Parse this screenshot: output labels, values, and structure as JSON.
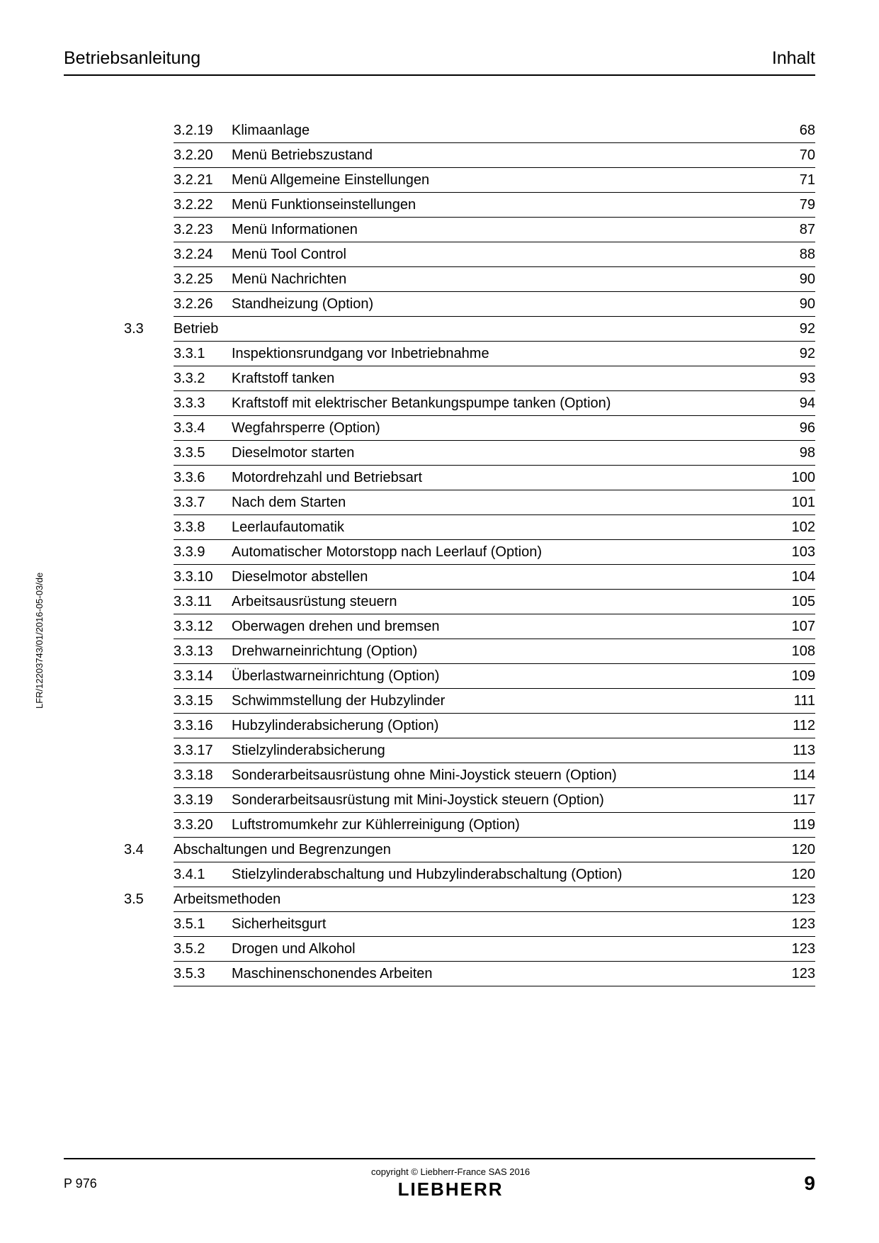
{
  "header": {
    "left": "Betriebsanleitung",
    "right": "Inhalt"
  },
  "side_text": "LFR/12203743/01/2016-05-03/de",
  "footer": {
    "left": "P 976",
    "copyright": "copyright © Liebherr-France SAS 2016",
    "logo": "LIEBHERR",
    "page": "9"
  },
  "toc": [
    {
      "section": "",
      "sub": "3.2.19",
      "title": "Klimaanlage",
      "page": "68"
    },
    {
      "section": "",
      "sub": "3.2.20",
      "title": "Menü Betriebszustand",
      "page": "70"
    },
    {
      "section": "",
      "sub": "3.2.21",
      "title": "Menü Allgemeine Einstellungen",
      "page": "71"
    },
    {
      "section": "",
      "sub": "3.2.22",
      "title": "Menü Funktionseinstellungen",
      "page": "79"
    },
    {
      "section": "",
      "sub": "3.2.23",
      "title": "Menü Informationen",
      "page": "87"
    },
    {
      "section": "",
      "sub": "3.2.24",
      "title": "Menü Tool Control",
      "page": "88"
    },
    {
      "section": "",
      "sub": "3.2.25",
      "title": "Menü Nachrichten",
      "page": "90"
    },
    {
      "section": "",
      "sub": "3.2.26",
      "title": "Standheizung (Option)",
      "page": "90"
    },
    {
      "section": "3.3",
      "sub": "",
      "title": "Betrieb",
      "page": "92"
    },
    {
      "section": "",
      "sub": "3.3.1",
      "title": "Inspektionsrundgang vor Inbetriebnahme",
      "page": "92"
    },
    {
      "section": "",
      "sub": "3.3.2",
      "title": "Kraftstoff tanken",
      "page": "93"
    },
    {
      "section": "",
      "sub": "3.3.3",
      "title": "Kraftstoff mit elektrischer Betankungspumpe tanken (Option)",
      "page": "94"
    },
    {
      "section": "",
      "sub": "3.3.4",
      "title": "Wegfahrsperre (Option)",
      "page": "96"
    },
    {
      "section": "",
      "sub": "3.3.5",
      "title": "Dieselmotor starten",
      "page": "98"
    },
    {
      "section": "",
      "sub": "3.3.6",
      "title": "Motordrehzahl und Betriebsart",
      "page": "100"
    },
    {
      "section": "",
      "sub": "3.3.7",
      "title": "Nach dem Starten",
      "page": "101"
    },
    {
      "section": "",
      "sub": "3.3.8",
      "title": "Leerlaufautomatik",
      "page": "102"
    },
    {
      "section": "",
      "sub": "3.3.9",
      "title": "Automatischer Motorstopp nach Leerlauf (Option)",
      "page": "103"
    },
    {
      "section": "",
      "sub": "3.3.10",
      "title": "Dieselmotor abstellen",
      "page": "104"
    },
    {
      "section": "",
      "sub": "3.3.11",
      "title": "Arbeitsausrüstung steuern",
      "page": "105"
    },
    {
      "section": "",
      "sub": "3.3.12",
      "title": "Oberwagen drehen und bremsen",
      "page": "107"
    },
    {
      "section": "",
      "sub": "3.3.13",
      "title": "Drehwarneinrichtung (Option)",
      "page": "108"
    },
    {
      "section": "",
      "sub": "3.3.14",
      "title": "Überlastwarneinrichtung (Option)",
      "page": "109"
    },
    {
      "section": "",
      "sub": "3.3.15",
      "title": "Schwimmstellung der Hubzylinder",
      "page": "111"
    },
    {
      "section": "",
      "sub": "3.3.16",
      "title": "Hubzylinderabsicherung (Option)",
      "page": "112"
    },
    {
      "section": "",
      "sub": "3.3.17",
      "title": "Stielzylinderabsicherung",
      "page": "113"
    },
    {
      "section": "",
      "sub": "3.3.18",
      "title": "Sonderarbeitsausrüstung ohne Mini-Joystick steuern (Option)",
      "page": "114"
    },
    {
      "section": "",
      "sub": "3.3.19",
      "title": "Sonderarbeitsausrüstung mit Mini-Joystick steuern (Option)",
      "page": "117"
    },
    {
      "section": "",
      "sub": "3.3.20",
      "title": "Luftstromumkehr zur Kühlerreinigung (Option)",
      "page": "119"
    },
    {
      "section": "3.4",
      "sub": "",
      "title": "Abschaltungen und Begrenzungen",
      "page": "120"
    },
    {
      "section": "",
      "sub": "3.4.1",
      "title": "Stielzylinderabschaltung und Hubzylinderabschaltung (Option)",
      "page": "120"
    },
    {
      "section": "3.5",
      "sub": "",
      "title": "Arbeitsmethoden",
      "page": "123"
    },
    {
      "section": "",
      "sub": "3.5.1",
      "title": "Sicherheitsgurt",
      "page": "123"
    },
    {
      "section": "",
      "sub": "3.5.2",
      "title": "Drogen und Alkohol",
      "page": "123"
    },
    {
      "section": "",
      "sub": "3.5.3",
      "title": "Maschinenschonendes Arbeiten",
      "page": "123"
    }
  ]
}
